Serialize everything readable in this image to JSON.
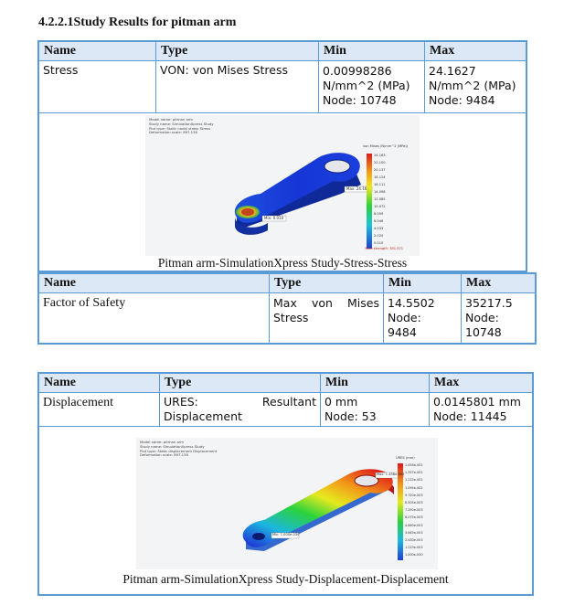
{
  "heading": "4.2.2.1Study Results for pitman arm",
  "stress_table": {
    "headers": [
      "Name",
      "Type",
      "Min",
      "Max"
    ],
    "row": {
      "name": "Stress",
      "type": "VON: von Mises Stress",
      "min_value": "0.00998286",
      "min_unit": "N/mm^2 (MPa)",
      "min_node": "Node: 10748",
      "max_value": "24.1627",
      "max_unit": "N/mm^2 (MPa)",
      "max_node": "Node: 9484"
    },
    "caption": "Pitman arm-SimulationXpress Study-Stress-Stress"
  },
  "fos_table": {
    "headers": [
      "Name",
      "Type",
      "Min",
      "Max"
    ],
    "row": {
      "name": "Factor of Safety",
      "type_line1": "Max von Mises",
      "type_line2": "Stress",
      "min_value": "14.5502",
      "min_node_label": "Node:",
      "min_node": "9484",
      "max_value": "35217.5",
      "max_node_label": "Node:",
      "max_node": "10748"
    }
  },
  "disp_table": {
    "headers": [
      "Name",
      "Type",
      "Min",
      "Max"
    ],
    "row": {
      "name": "Displacement",
      "type_line1": "URES: Resultant",
      "type_line2": "Displacement",
      "min_value": "0 mm",
      "min_node": "Node: 53",
      "max_value": "0.0145801 mm",
      "max_node": "Node: 11445"
    },
    "caption": "Pitman arm-SimulationXpress Study-Displacement-Displacement"
  },
  "colors": {
    "border": "#5b9bd5",
    "header_fill": "#dce8f5",
    "legend_red": "#e0191b",
    "legend_blue": "#1f3fd6"
  },
  "stress_plot": {
    "meta": "Model name: pitman arm\nStudy name: SimulationXpress Study\nPlot type: Static nodal stress Stress\nDeformation scale: 897.136",
    "legend_title": "von Mises (N/mm^2 (MPa))",
    "legend_ticks": [
      "24.163",
      "22.150",
      "20.137",
      "18.124",
      "16.111",
      "14.098",
      "12.085",
      "10.072",
      "8.059",
      "6.046",
      "4.033",
      "2.020",
      "0.010"
    ],
    "legend_footer": "Yield strength: 351.571",
    "probe_max": "Max: 24.16",
    "probe_min": "Min: 0.010"
  },
  "disp_plot": {
    "meta": "Model name: pitman arm\nStudy name: SimulationXpress Study\nPlot type: Static displacement Displacement\nDeformation scale: 897.136",
    "legend_title": "URES (mm)",
    "legend_ticks": [
      "1.458e-002",
      "1.337e-002",
      "1.215e-002",
      "1.094e-002",
      "9.720e-003",
      "8.505e-003",
      "7.290e-003",
      "6.075e-003",
      "4.860e-003",
      "3.645e-003",
      "2.430e-003",
      "1.215e-003",
      "1.000e-030"
    ],
    "probe_max": "Max: 1.458e-002",
    "probe_min": "Min: 1.000e-030"
  }
}
